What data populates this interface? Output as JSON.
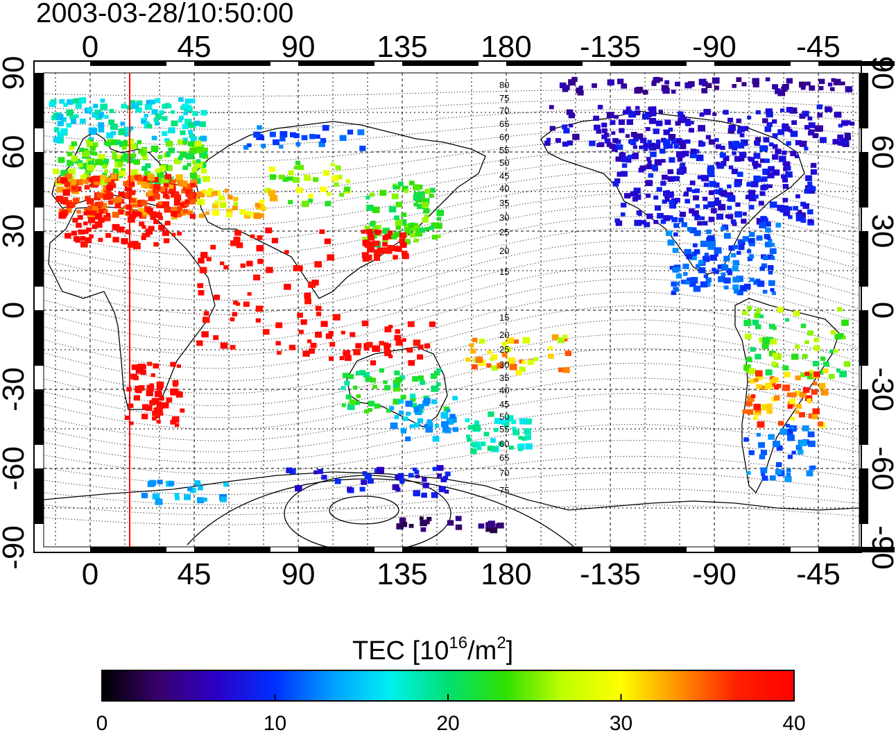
{
  "title": "2003-03-28/10:50:00",
  "map": {
    "top_ticks": [
      "0",
      "45",
      "90",
      "135",
      "180",
      "-135",
      "-90",
      "-45"
    ],
    "bottom_ticks": [
      "0",
      "45",
      "90",
      "135",
      "180",
      "-135",
      "-90",
      "-45"
    ],
    "left_ticks": [
      "90",
      "60",
      "30",
      "0",
      "-30",
      "-60",
      "-90"
    ],
    "right_ticks": [
      "90",
      "60",
      "30",
      "0",
      "-30",
      "-60",
      "-90"
    ],
    "contour_labels": [
      "80",
      "75",
      "70",
      "65",
      "60",
      "55",
      "50",
      "45",
      "40",
      "35",
      "30",
      "25",
      "20",
      "15",
      "15",
      "20",
      "25",
      "30",
      "35",
      "40",
      "45",
      "50",
      "55",
      "60",
      "65",
      "70",
      "75"
    ],
    "terminator_longitude": 18
  },
  "colorbar": {
    "title_main": "TEC  [10",
    "title_sup": "16",
    "title_mid": "/m",
    "title_sup2": "2",
    "title_end": "]",
    "ticks": [
      "0",
      "10",
      "20",
      "30",
      "40"
    ],
    "min": 0,
    "max": 40,
    "stops": [
      "#000000",
      "#3a006e",
      "#2a00c8",
      "#0030ff",
      "#00a0ff",
      "#00f0f0",
      "#00e070",
      "#30e000",
      "#c0ff00",
      "#ffff00",
      "#ff9000",
      "#ff2000",
      "#ff0000"
    ]
  }
}
